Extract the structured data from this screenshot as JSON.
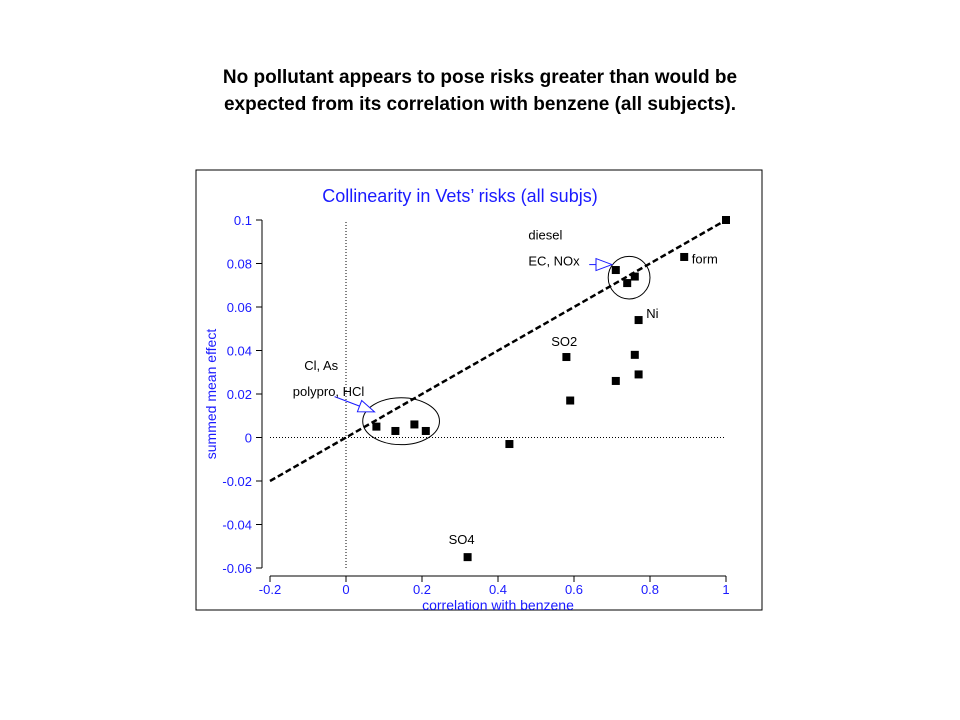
{
  "heading": {
    "line1": "No pollutant appears to pose risks greater than would be",
    "line2": "expected from its correlation with benzene (all subjects)."
  },
  "colors": {
    "axis_text": "#1a1aff",
    "ink": "#000000"
  },
  "chart_data": {
    "type": "scatter",
    "title": "Collinearity in Vets’ risks (all subjs)",
    "xlabel": "correlation with benzene",
    "ylabel": "summed mean effect",
    "xlim": [
      -0.2,
      1
    ],
    "ylim": [
      -0.06,
      0.1
    ],
    "xticks": [
      -0.2,
      0,
      0.2,
      0.4,
      0.6,
      0.8,
      1
    ],
    "xtick_labels": [
      "-0.2",
      "0",
      "0.2",
      "0.4",
      "0.6",
      "0.8",
      "1"
    ],
    "yticks": [
      -0.06,
      -0.04,
      -0.02,
      0,
      0.02,
      0.04,
      0.06,
      0.08,
      0.1
    ],
    "ytick_labels": [
      "-0.06",
      "-0.04",
      "-0.02",
      "0",
      "0.02",
      "0.04",
      "0.06",
      "0.08",
      "0.1"
    ],
    "grid": false,
    "reference_lines": {
      "x": 0,
      "y": 0,
      "style": "dotted"
    },
    "fit_line": {
      "style": "dashed",
      "from": [
        -0.2,
        -0.02
      ],
      "to": [
        1,
        0.1
      ]
    },
    "points": [
      {
        "x": 0.08,
        "y": 0.005
      },
      {
        "x": 0.13,
        "y": 0.003
      },
      {
        "x": 0.18,
        "y": 0.006
      },
      {
        "x": 0.21,
        "y": 0.003
      },
      {
        "x": 0.32,
        "y": -0.055
      },
      {
        "x": 0.43,
        "y": -0.003
      },
      {
        "x": 0.58,
        "y": 0.037
      },
      {
        "x": 0.59,
        "y": 0.017
      },
      {
        "x": 0.71,
        "y": 0.026
      },
      {
        "x": 0.71,
        "y": 0.077
      },
      {
        "x": 0.74,
        "y": 0.071
      },
      {
        "x": 0.76,
        "y": 0.074
      },
      {
        "x": 0.76,
        "y": 0.038
      },
      {
        "x": 0.77,
        "y": 0.029
      },
      {
        "x": 0.77,
        "y": 0.054
      },
      {
        "x": 0.89,
        "y": 0.083
      },
      {
        "x": 1.0,
        "y": 0.1
      }
    ],
    "annotations": [
      {
        "text": "diesel",
        "x": 0.48,
        "y": 0.091
      },
      {
        "text": "EC, NOx",
        "x": 0.48,
        "y": 0.079
      },
      {
        "text": "form",
        "x": 0.91,
        "y": 0.08
      },
      {
        "text": "Ni",
        "x": 0.79,
        "y": 0.055
      },
      {
        "text": "SO2",
        "x": 0.54,
        "y": 0.042
      },
      {
        "text": "Cl, As",
        "x": -0.11,
        "y": 0.031
      },
      {
        "text": "polypro, HCl",
        "x": -0.14,
        "y": 0.019
      },
      {
        "text": "SO4",
        "x": 0.27,
        "y": -0.049
      }
    ],
    "circles": [
      {
        "cx": 0.145,
        "cy": 0.0075,
        "rx": 0.101,
        "ry": 0.0108
      },
      {
        "cx": 0.745,
        "cy": 0.0735,
        "rx": 0.055,
        "ry": 0.0098
      }
    ],
    "arrows": [
      {
        "from": [
          -0.03,
          0.0188
        ],
        "to": [
          0.075,
          0.0118
        ]
      },
      {
        "from": [
          0.64,
          0.0795
        ],
        "to": [
          0.7,
          0.0795
        ]
      }
    ]
  }
}
